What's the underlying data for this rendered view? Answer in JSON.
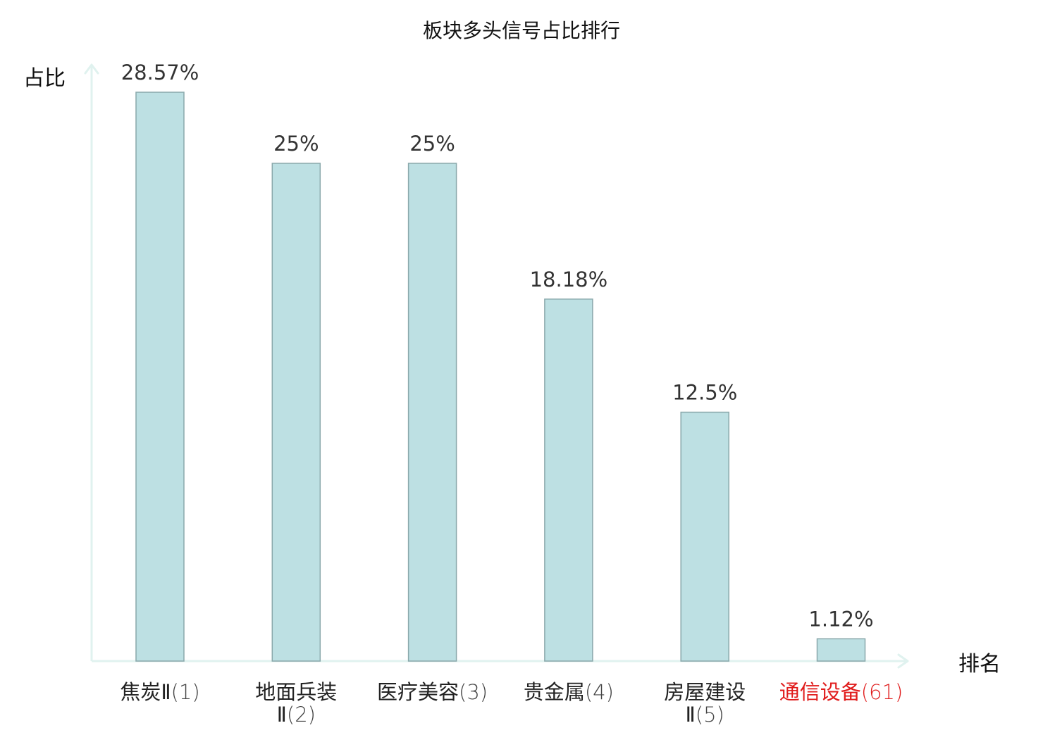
{
  "chart_data": {
    "type": "bar",
    "title": "板块多头信号占比排行",
    "ylabel": "占比",
    "xlabel": "排名",
    "categories": [
      {
        "name_lines": [
          "焦炭Ⅱ"
        ],
        "rank": "(1)",
        "highlight": false
      },
      {
        "name_lines": [
          "地面兵装",
          "Ⅱ"
        ],
        "rank": "(2)",
        "highlight": false
      },
      {
        "name_lines": [
          "医疗美容"
        ],
        "rank": "(3)",
        "highlight": false
      },
      {
        "name_lines": [
          "贵金属"
        ],
        "rank": "(4)",
        "highlight": false
      },
      {
        "name_lines": [
          "房屋建设",
          "Ⅱ"
        ],
        "rank": "(5)",
        "highlight": false
      },
      {
        "name_lines": [
          "通信设备"
        ],
        "rank": "(61)",
        "highlight": true
      }
    ],
    "values": [
      28.57,
      25,
      25,
      18.18,
      12.5,
      1.12
    ],
    "value_labels": [
      "28.57%",
      "25%",
      "25%",
      "18.18%",
      "12.5%",
      "1.12%"
    ],
    "ylim": [
      0,
      28.57
    ],
    "grid": false,
    "legend": "none"
  },
  "colors": {
    "bar_fill": "#bde0e3",
    "bar_stroke": "#8aa8ab",
    "axis": "#e0f2ef",
    "text": "#222222",
    "value_text": "#333333",
    "rank_text": "#444444",
    "highlight": "#e01b1b"
  }
}
